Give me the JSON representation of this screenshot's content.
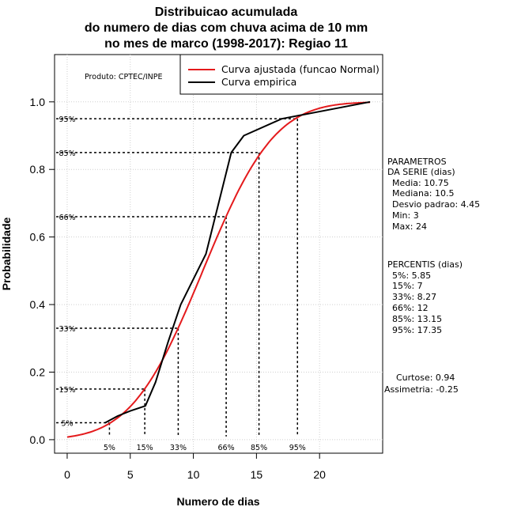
{
  "chart_data": {
    "type": "line",
    "title_lines": [
      "Distribuicao acumulada",
      "do numero de dias com chuva acima de 10 mm",
      "no mes de marco (1998-2017): Regiao 11"
    ],
    "xlabel": "Numero de dias",
    "ylabel": "Probabilidade",
    "xlim": [
      -1,
      25
    ],
    "ylim": [
      -0.04,
      1.14
    ],
    "x_ticks": [
      0,
      5,
      10,
      15,
      20
    ],
    "x_tick_labels": [
      "0",
      "5",
      "10",
      "15",
      "20"
    ],
    "y_ticks": [
      0.0,
      0.2,
      0.4,
      0.6,
      0.8,
      1.0
    ],
    "y_tick_labels": [
      "0.0",
      "0.2",
      "0.4",
      "0.6",
      "0.8",
      "1.0"
    ],
    "grid": true,
    "producer_note": "Produto: CPTEC/INPE",
    "legend": {
      "position": "top-right",
      "entries": [
        {
          "label": "Curva ajustada (funcao Normal)",
          "color": "#e41a1c"
        },
        {
          "label": "Curva empirica",
          "color": "#000000"
        }
      ]
    },
    "series": [
      {
        "name": "Curva ajustada (funcao Normal)",
        "color": "#e41a1c",
        "distribution": "normal",
        "mean": 10.75,
        "sd": 4.45,
        "x_range": [
          0,
          24
        ]
      },
      {
        "name": "Curva empirica",
        "color": "#000000",
        "x": [
          3,
          4,
          5,
          6.2,
          7,
          8,
          9,
          11,
          13,
          14,
          17,
          24
        ],
        "y": [
          0.05,
          0.07,
          0.085,
          0.1,
          0.17,
          0.29,
          0.4,
          0.55,
          0.85,
          0.9,
          0.95,
          1.0
        ]
      }
    ],
    "percentile_guides": [
      {
        "label": "5%",
        "x": 3.35,
        "p": 0.05
      },
      {
        "label": "15%",
        "x": 6.15,
        "p": 0.15
      },
      {
        "label": "33%",
        "x": 8.8,
        "p": 0.33
      },
      {
        "label": "66%",
        "x": 12.6,
        "p": 0.66
      },
      {
        "label": "85%",
        "x": 15.2,
        "p": 0.85
      },
      {
        "label": "95%",
        "x": 18.25,
        "p": 0.95
      }
    ]
  },
  "side_panel": {
    "params_heading": [
      "PARAMETROS",
      "DA SERIE (dias)"
    ],
    "params": [
      "Media: 10.75",
      "Mediana: 10.5",
      "Desvio padrao: 4.45",
      "Min: 3",
      "Max: 24"
    ],
    "percentis_heading": "PERCENTIS (dias)",
    "percentis": [
      "5%: 5.85",
      "15%: 7",
      "33%: 8.27",
      "66%: 12",
      "85%: 13.15",
      "95%: 17.35"
    ],
    "curtose": "Curtose: 0.94",
    "assimetria": "Assimetria: -0.25"
  }
}
